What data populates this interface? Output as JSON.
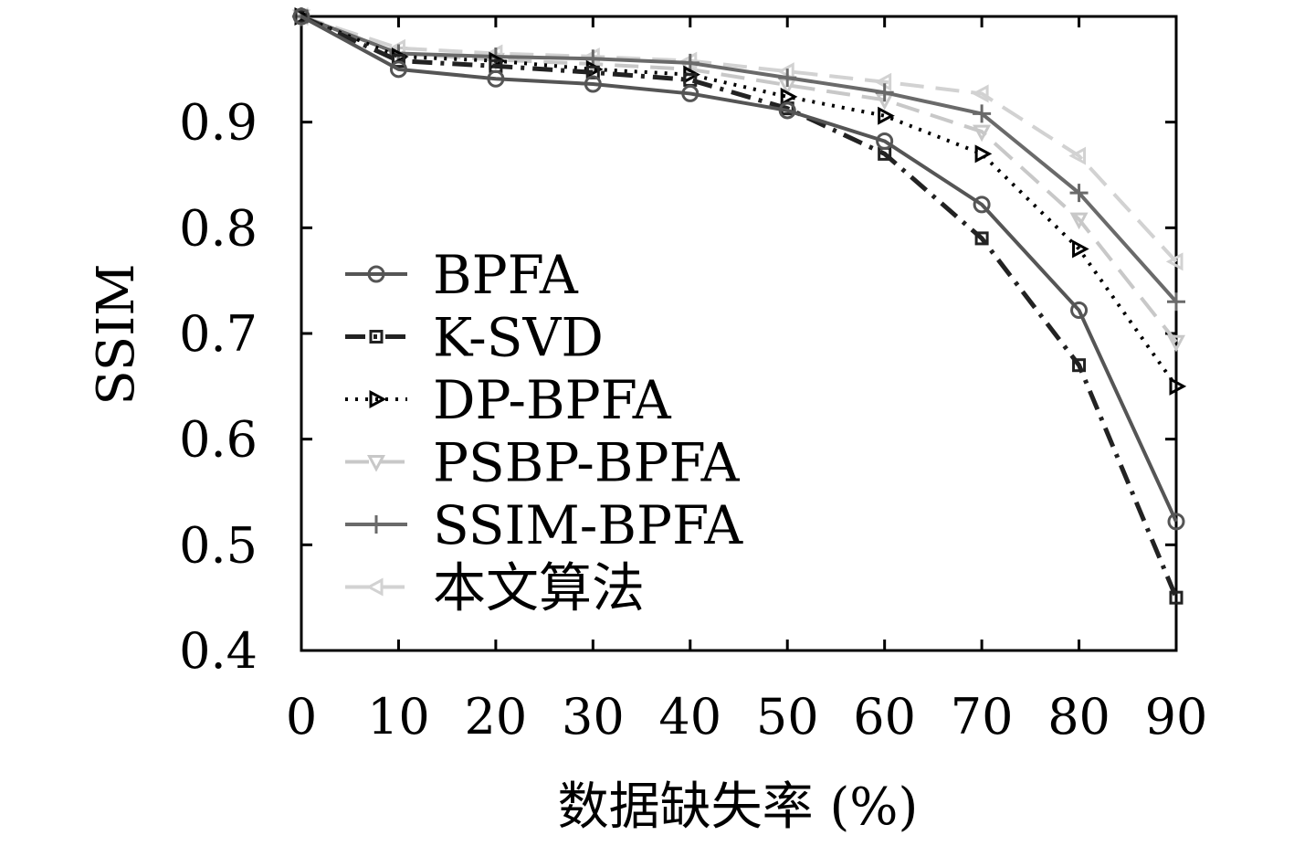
{
  "chart_data": {
    "type": "line",
    "xlabel": "数据缺失率 (%)",
    "ylabel": "SSIM",
    "xlim": [
      0,
      90
    ],
    "ylim": [
      0.4,
      1.0
    ],
    "x": [
      0,
      10,
      20,
      30,
      40,
      50,
      60,
      70,
      80,
      90
    ],
    "xticks": [
      "0",
      "10",
      "20",
      "30",
      "40",
      "50",
      "60",
      "70",
      "80",
      "90"
    ],
    "yticks": [
      0.4,
      0.5,
      0.6,
      0.7,
      0.8,
      0.9
    ],
    "ytick_labels": [
      "0.4",
      "0.5",
      "0.6",
      "0.7",
      "0.8",
      "0.9"
    ],
    "grid": false,
    "legend_position": "left",
    "series": [
      {
        "name": "BPFA",
        "color": "#555555",
        "dash": "solid",
        "marker": "circle",
        "values": [
          1.0,
          0.95,
          0.941,
          0.936,
          0.927,
          0.911,
          0.882,
          0.822,
          0.722,
          0.522
        ]
      },
      {
        "name": "K-SVD",
        "color": "#222222",
        "dash": "dashdot",
        "marker": "square",
        "values": [
          1.0,
          0.958,
          0.953,
          0.947,
          0.94,
          0.913,
          0.87,
          0.79,
          0.67,
          0.45
        ]
      },
      {
        "name": "DP-BPFA",
        "color": "#000000",
        "dash": "dotted",
        "marker": "triangle-right",
        "values": [
          1.0,
          0.962,
          0.958,
          0.95,
          0.945,
          0.924,
          0.906,
          0.87,
          0.78,
          0.65
        ]
      },
      {
        "name": "PSBP-BPFA",
        "color": "#c8c8c8",
        "dash": "dashed",
        "marker": "triangle-down",
        "values": [
          1.0,
          0.965,
          0.959,
          0.955,
          0.95,
          0.935,
          0.921,
          0.891,
          0.808,
          0.692
        ]
      },
      {
        "name": "SSIM-BPFA",
        "color": "#6a6a6a",
        "dash": "solid",
        "marker": "plus",
        "values": [
          1.0,
          0.965,
          0.962,
          0.96,
          0.956,
          0.942,
          0.928,
          0.908,
          0.833,
          0.73
        ]
      },
      {
        "name": "本文算法",
        "color": "#d2d2d2",
        "dash": "dashed",
        "marker": "triangle-left",
        "values": [
          1.0,
          0.97,
          0.965,
          0.962,
          0.958,
          0.948,
          0.938,
          0.927,
          0.868,
          0.768
        ]
      }
    ]
  }
}
